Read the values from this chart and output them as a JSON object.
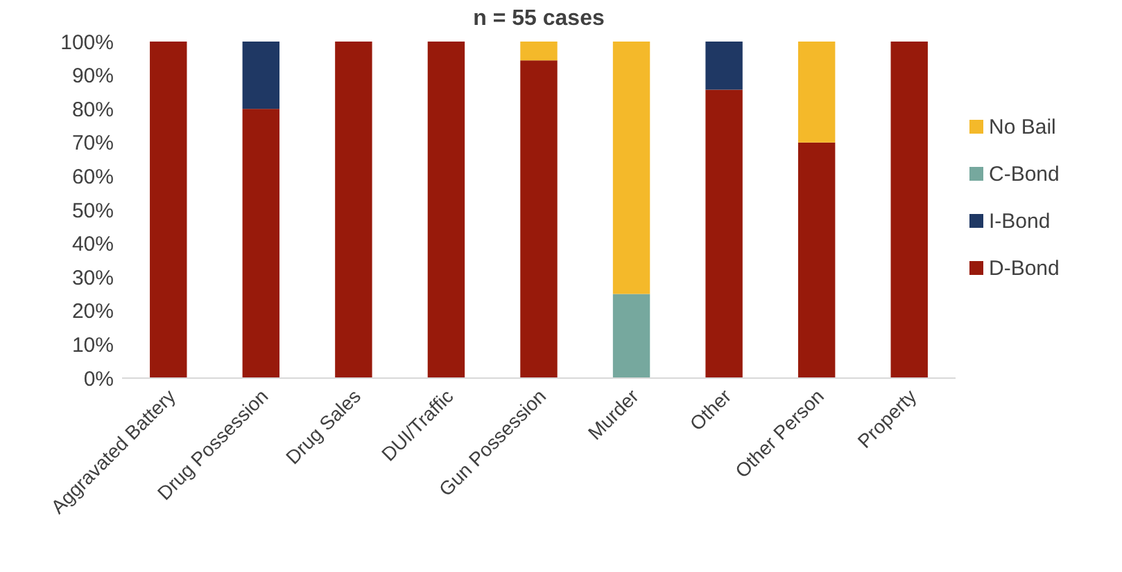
{
  "chart_data": {
    "type": "bar",
    "title": "n = 55 cases",
    "stacked": true,
    "legend": "right",
    "grid": false,
    "categories": [
      "Aggravated Battery",
      "Drug Possession",
      "Drug Sales",
      "DUI/Traffic",
      "Gun Possession",
      "Murder",
      "Other",
      "Other Person",
      "Property"
    ],
    "ylim": [
      0,
      100
    ],
    "yticks": [
      {
        "value": 0,
        "label": "0%"
      },
      {
        "value": 10,
        "label": "10%"
      },
      {
        "value": 20,
        "label": "20%"
      },
      {
        "value": 30,
        "label": "30%"
      },
      {
        "value": 40,
        "label": "40%"
      },
      {
        "value": 50,
        "label": "50%"
      },
      {
        "value": 60,
        "label": "60%"
      },
      {
        "value": 70,
        "label": "70%"
      },
      {
        "value": 80,
        "label": "80%"
      },
      {
        "value": 90,
        "label": "90%"
      },
      {
        "value": 100,
        "label": "100%"
      }
    ],
    "series": [
      {
        "name": "D-Bond",
        "color": "#981a0b",
        "values": [
          100,
          80,
          100,
          100,
          94.4,
          0,
          85.7,
          70,
          100
        ]
      },
      {
        "name": "I-Bond",
        "color": "#1f3864",
        "values": [
          0,
          20,
          0,
          0,
          0,
          0,
          14.3,
          0,
          0
        ]
      },
      {
        "name": "C-Bond",
        "color": "#76a89e",
        "values": [
          0,
          0,
          0,
          0,
          0,
          25,
          0,
          0,
          0
        ]
      },
      {
        "name": "No Bail",
        "color": "#f4b92a",
        "values": [
          0,
          0,
          0,
          0,
          5.6,
          75,
          0,
          30,
          0
        ]
      }
    ]
  }
}
